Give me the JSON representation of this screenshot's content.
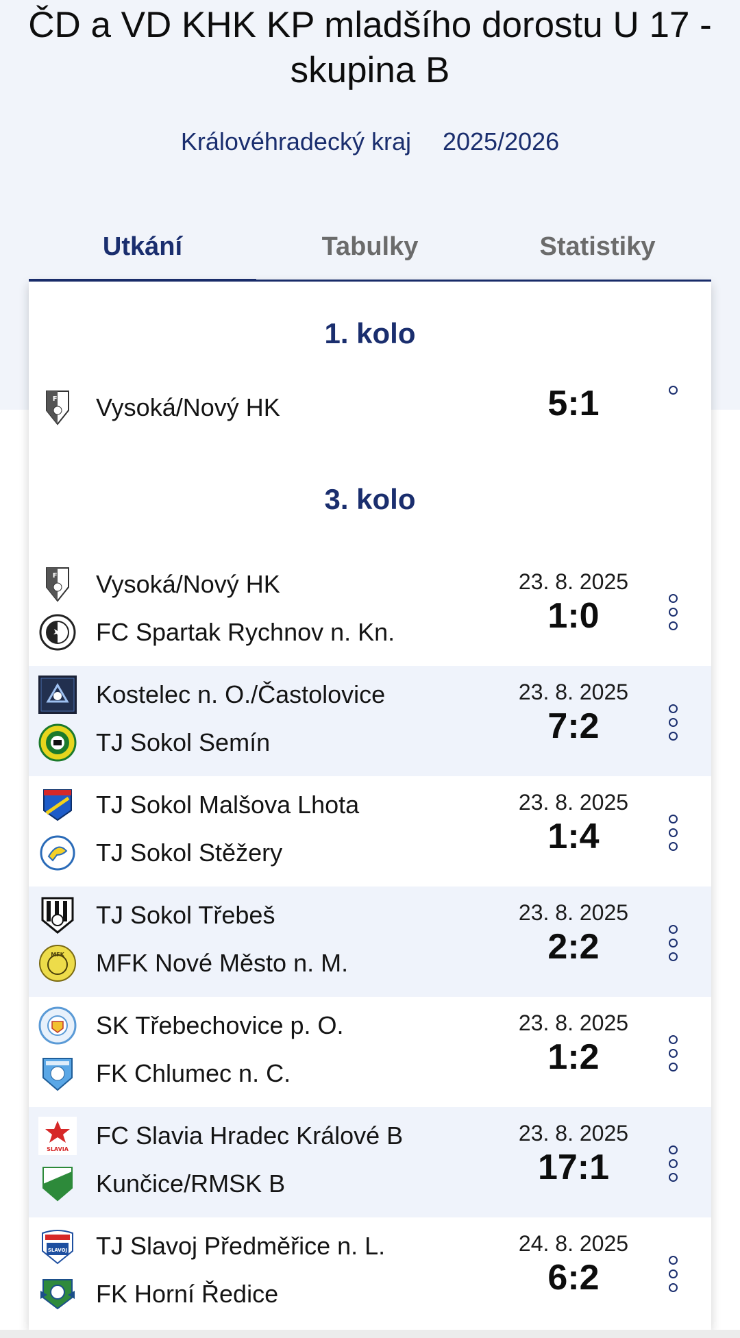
{
  "header": {
    "title": "ČD a VD KHK KP mladšího dorostu U 17 - skupina B",
    "region": "Královéhradecký kraj",
    "season": "2025/2026"
  },
  "tabs": [
    {
      "label": "Utkání",
      "active": true
    },
    {
      "label": "Tabulky",
      "active": false
    },
    {
      "label": "Statistiky",
      "active": false
    }
  ],
  "rounds": [
    {
      "title": "1. kolo",
      "matches": [
        {
          "home": "Vysoká/Nový HK",
          "away": "",
          "date": "",
          "score": "5:1"
        }
      ]
    },
    {
      "title": "3. kolo",
      "matches": [
        {
          "home": "Vysoká/Nový HK",
          "away": "FC Spartak Rychnov n. Kn.",
          "date": "23. 8. 2025",
          "score": "1:0"
        },
        {
          "home": "Kostelec n. O./Častolovice",
          "away": "TJ Sokol Semín",
          "date": "23. 8. 2025",
          "score": "7:2"
        },
        {
          "home": "TJ Sokol Malšova Lhota",
          "away": "TJ Sokol Stěžery",
          "date": "23. 8. 2025",
          "score": "1:4"
        },
        {
          "home": "TJ Sokol Třebeš",
          "away": "MFK Nové Město n. M.",
          "date": "23. 8. 2025",
          "score": "2:2"
        },
        {
          "home": "SK Třebechovice p. O.",
          "away": "FK Chlumec n. C.",
          "date": "23. 8. 2025",
          "score": "1:2"
        },
        {
          "home": "FC Slavia Hradec Králové B",
          "away": "Kunčice/RMSK B",
          "date": "23. 8. 2025",
          "score": "17:1"
        },
        {
          "home": "TJ Slavoj Předměřice n. L.",
          "away": "FK Horní Ředice",
          "date": "24. 8. 2025",
          "score": "6:2"
        }
      ]
    }
  ],
  "colors": {
    "accent": "#1a2e6e",
    "header_bg": "#f1f4fa",
    "row_alt": "#eff3fb"
  }
}
